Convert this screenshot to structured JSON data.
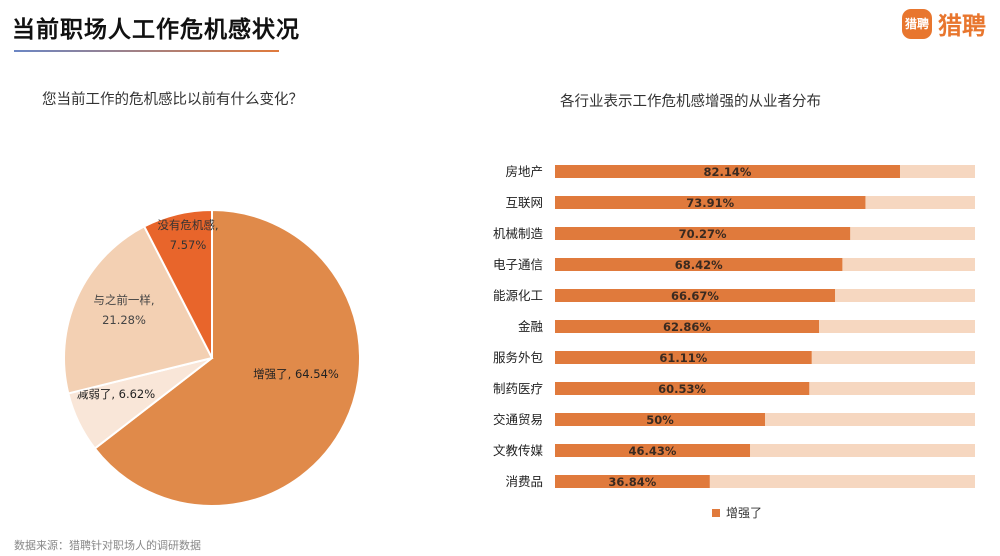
{
  "header": {
    "title": "当前职场人工作危机感状况",
    "logo_badge": "猎聘",
    "logo_text": "猎聘"
  },
  "colors": {
    "bar_fill": "#e07a3c",
    "bar_track": "#f6d7c0",
    "pie_strengthened": "#e08a4a",
    "pie_weakened": "#f9e6d8",
    "pie_same": "#f3d0b3",
    "pie_none": "#e8652b"
  },
  "footer": {
    "source": "数据来源：猎聘针对职场人的调研数据"
  },
  "chart_data": [
    {
      "type": "pie",
      "title": "您当前工作的危机感比以前有什么变化？",
      "slices": [
        {
          "label": "增强了,",
          "value_label": "64.54%",
          "value": 64.54
        },
        {
          "label": "减弱了,",
          "value_label": "6.62%",
          "value": 6.62
        },
        {
          "label": "与之前一样,",
          "value_label": "21.28%",
          "value": 21.28
        },
        {
          "label": "没有危机感,",
          "value_label": "7.57%",
          "value": 7.57
        }
      ]
    },
    {
      "type": "bar",
      "orientation": "horizontal",
      "title": "各行业表示工作危机感增强的从业者分布",
      "categories": [
        "房地产",
        "互联网",
        "机械制造",
        "电子通信",
        "能源化工",
        "金融",
        "服务外包",
        "制药医疗",
        "交通贸易",
        "文教传媒",
        "消费品"
      ],
      "series": [
        {
          "name": "增强了",
          "values": [
            82.14,
            73.91,
            70.27,
            68.42,
            66.67,
            62.86,
            61.11,
            60.53,
            50,
            46.43,
            36.84
          ],
          "value_labels": [
            "82.14%",
            "73.91%",
            "70.27%",
            "68.42%",
            "66.67%",
            "62.86%",
            "61.11%",
            "60.53%",
            "50%",
            "46.43%",
            "36.84%"
          ]
        }
      ],
      "xlim": [
        0,
        100
      ],
      "legend_position": "bottom"
    }
  ]
}
